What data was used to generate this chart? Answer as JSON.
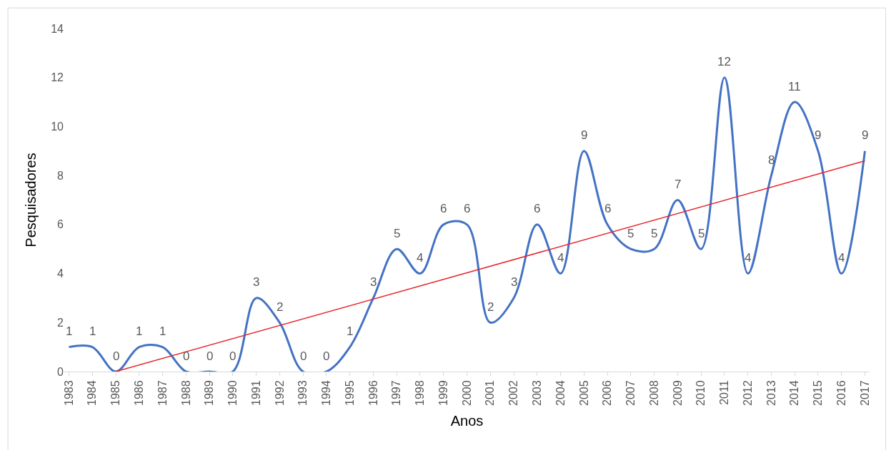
{
  "chart_data": {
    "type": "line",
    "xlabel": "Anos",
    "ylabel": "Pesquisadores",
    "categories": [
      "1983",
      "1984",
      "1985",
      "1986",
      "1987",
      "1988",
      "1989",
      "1990",
      "1991",
      "1992",
      "1993",
      "1994",
      "1995",
      "1996",
      "1997",
      "1998",
      "1999",
      "2000",
      "2001",
      "2002",
      "2003",
      "2004",
      "2005",
      "2006",
      "2007",
      "2008",
      "2009",
      "2010",
      "2011",
      "2012",
      "2013",
      "2014",
      "2015",
      "2016",
      "2017"
    ],
    "series": [
      {
        "color": "#4472c4",
        "values": [
          1,
          1,
          0,
          1,
          1,
          0,
          0,
          0,
          3,
          2,
          0,
          0,
          1,
          3,
          5,
          4,
          6,
          6,
          2,
          3,
          6,
          4,
          9,
          6,
          5,
          5,
          7,
          5,
          12,
          4,
          8,
          11,
          9,
          4,
          9
        ],
        "data_labels": true
      },
      {
        "color": "#e8252b",
        "values": [
          null,
          null,
          0,
          null,
          null,
          null,
          null,
          null,
          null,
          null,
          null,
          null,
          null,
          null,
          null,
          null,
          null,
          null,
          null,
          null,
          null,
          null,
          null,
          null,
          null,
          null,
          null,
          null,
          null,
          null,
          null,
          null,
          null,
          null,
          8.6
        ]
      }
    ],
    "ylim": [
      0,
      14
    ],
    "yticks": [
      0,
      2,
      4,
      6,
      8,
      10,
      12,
      14
    ],
    "marker": "none"
  }
}
